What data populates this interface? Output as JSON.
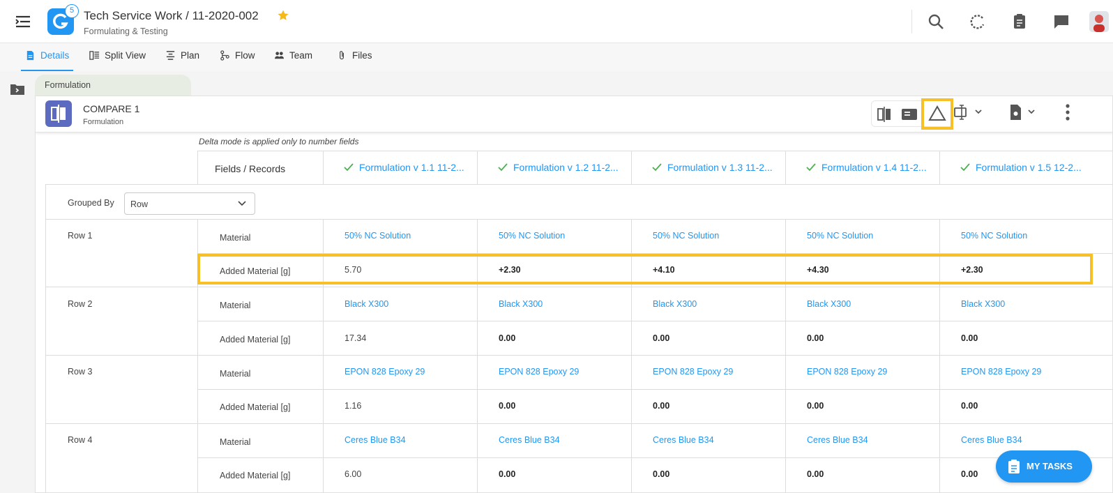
{
  "header": {
    "title": "Tech Service Work / 11-2020-002",
    "subtitle": "Formulating & Testing",
    "notification_count": "5"
  },
  "tabs": [
    {
      "label": "Details",
      "icon": "document-icon"
    },
    {
      "label": "Split View",
      "icon": "split-view-icon"
    },
    {
      "label": "Plan",
      "icon": "plan-icon"
    },
    {
      "label": "Flow",
      "icon": "flow-icon"
    },
    {
      "label": "Team",
      "icon": "team-icon"
    },
    {
      "label": "Files",
      "icon": "paperclip-icon"
    }
  ],
  "breadcrumb": "Formulation",
  "panel": {
    "title": "COMPARE 1",
    "subtitle": "Formulation",
    "note": "Delta mode is applied only to number fields"
  },
  "table": {
    "fields_header": "Fields / Records",
    "columns": [
      "Formulation v 1.1 11-2...",
      "Formulation v 1.2 11-2...",
      "Formulation v 1.3 11-2...",
      "Formulation v 1.4 11-2...",
      "Formulation v 1.5 12-2..."
    ],
    "grouped_by_label": "Grouped By",
    "grouped_by_value": "Row",
    "rows": [
      {
        "label": "Row 1",
        "material_label": "Material",
        "added_label": "Added Material [g]",
        "materials": [
          "50% NC Solution",
          "50% NC Solution",
          "50% NC Solution",
          "50% NC Solution",
          "50% NC Solution"
        ],
        "added": [
          "5.70",
          "+2.30",
          "+4.10",
          "+4.30",
          "+2.30"
        ]
      },
      {
        "label": "Row 2",
        "material_label": "Material",
        "added_label": "Added Material [g]",
        "materials": [
          "Black X300",
          "Black X300",
          "Black X300",
          "Black X300",
          "Black X300"
        ],
        "added": [
          "17.34",
          "0.00",
          "0.00",
          "0.00",
          "0.00"
        ]
      },
      {
        "label": "Row 3",
        "material_label": "Material",
        "added_label": "Added Material [g]",
        "materials": [
          "EPON 828 Epoxy 29",
          "EPON 828 Epoxy 29",
          "EPON 828 Epoxy 29",
          "EPON 828 Epoxy 29",
          "EPON 828 Epoxy 29"
        ],
        "added": [
          "1.16",
          "0.00",
          "0.00",
          "0.00",
          "0.00"
        ]
      },
      {
        "label": "Row 4",
        "material_label": "Material",
        "added_label": "Added Material [g]",
        "materials": [
          "Ceres Blue B34",
          "Ceres Blue B34",
          "Ceres Blue B34",
          "Ceres Blue B34",
          "Ceres Blue B34"
        ],
        "added": [
          "6.00",
          "0.00",
          "0.00",
          "0.00",
          "0.00"
        ]
      }
    ]
  },
  "fab": {
    "label": "MY TASKS"
  },
  "colors": {
    "accent": "#2196f3",
    "highlight": "#f6c026",
    "compare_icon": "#5c6bc0"
  }
}
